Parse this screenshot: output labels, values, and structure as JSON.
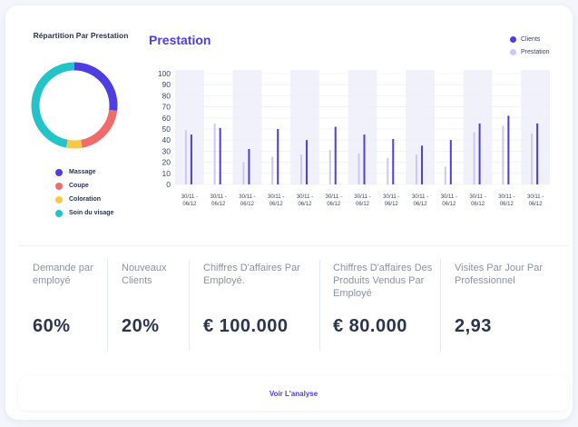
{
  "donut": {
    "title": "Répartition Par Prestation",
    "legend": [
      {
        "label": "Massage",
        "color": "#4c3ee0"
      },
      {
        "label": "Coupe",
        "color": "#f26b6b"
      },
      {
        "label": "Coloration",
        "color": "#f7c948"
      },
      {
        "label": "Soin du visage",
        "color": "#22c3c9"
      }
    ]
  },
  "chart_data": [
    {
      "type": "pie",
      "title": "Répartition Par Prestation",
      "categories": [
        "Massage",
        "Coupe",
        "Coloration",
        "Soin du visage"
      ],
      "values": [
        27,
        20,
        6,
        47
      ],
      "colors": [
        "#4c3ee0",
        "#f26b6b",
        "#f7c948",
        "#22c3c9"
      ]
    },
    {
      "type": "bar",
      "title": "Prestation",
      "categories": [
        "30/11 - 06/12",
        "30/11 - 06/12",
        "30/11 - 06/12",
        "30/11 - 06/12",
        "30/11 - 06/12",
        "30/11 - 06/12",
        "30/11 - 06/12",
        "30/11 - 06/12",
        "30/11 - 06/12",
        "30/11 - 06/12",
        "30/11 - 06/12",
        "30/11 - 06/12",
        "30/11 - 06/12"
      ],
      "series": [
        {
          "name": "Clients",
          "color": "#4c3ee0",
          "values": [
            45,
            51,
            32,
            50,
            40,
            52,
            45,
            41,
            35,
            40,
            55,
            62,
            55
          ]
        },
        {
          "name": "Prestation",
          "color": "#cdc8f5",
          "values": [
            49,
            55,
            20,
            25,
            27,
            31,
            28,
            24,
            27,
            16,
            47,
            53,
            46
          ]
        }
      ],
      "ylim": [
        0,
        100
      ],
      "yticks": [
        0,
        10,
        20,
        30,
        40,
        50,
        60,
        70,
        80,
        90,
        100
      ],
      "legend_position": "top-right"
    }
  ],
  "prestation_title": "Prestation",
  "chart_legend": [
    {
      "label": "Clients",
      "color": "#4c3ee0"
    },
    {
      "label": "Prestation",
      "color": "#cdc8f5"
    }
  ],
  "kpis": [
    {
      "label": "Demande par employé",
      "value": "60%"
    },
    {
      "label": "Nouveaux Clients",
      "value": "20%"
    },
    {
      "label": "Chiffres D'affaires Par Employé.",
      "value": "€ 100.000"
    },
    {
      "label": "Chiffres D'affaires Des Produits Vendus Par Employé",
      "value": "€ 80.000"
    },
    {
      "label": "Visites Par Jour Par Professionnel",
      "value": "2,93"
    }
  ],
  "footer": {
    "button_label": "Voir L'analyse"
  }
}
